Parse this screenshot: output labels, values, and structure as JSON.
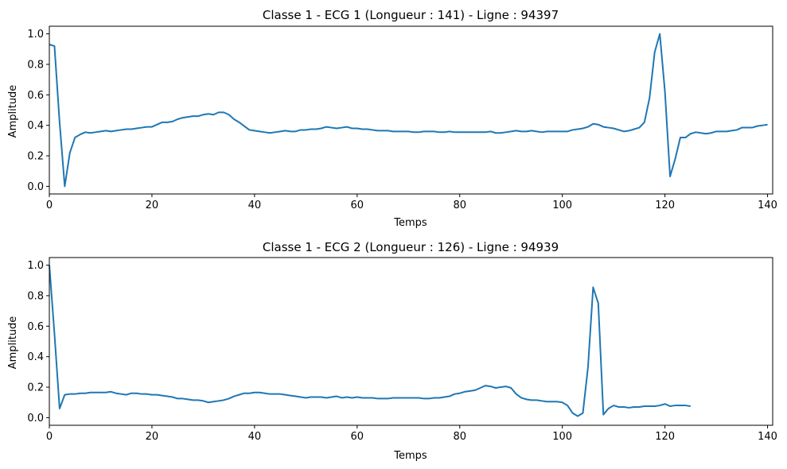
{
  "colors": {
    "line": "#1f77b4",
    "axes": "#000000",
    "background": "#ffffff"
  },
  "chart_data": [
    {
      "type": "line",
      "title": "Classe 1 - ECG 1 (Longueur : 141) - Ligne : 94397",
      "xlabel": "Temps",
      "ylabel": "Amplitude",
      "xlim": [
        0,
        141
      ],
      "ylim": [
        -0.05,
        1.05
      ],
      "xticks": [
        0,
        20,
        40,
        60,
        80,
        100,
        120,
        140
      ],
      "xtick_labels": [
        "0",
        "20",
        "40",
        "60",
        "80",
        "100",
        "120",
        "140"
      ],
      "yticks": [
        0.0,
        0.2,
        0.4,
        0.6,
        0.8,
        1.0
      ],
      "ytick_labels": [
        "0.0",
        "0.2",
        "0.4",
        "0.6",
        "0.8",
        "1.0"
      ],
      "grid": false,
      "series": [
        {
          "values": [
            0.93,
            0.92,
            0.42,
            0.0,
            0.22,
            0.32,
            0.34,
            0.355,
            0.35,
            0.355,
            0.36,
            0.365,
            0.36,
            0.365,
            0.37,
            0.375,
            0.375,
            0.38,
            0.385,
            0.39,
            0.39,
            0.405,
            0.42,
            0.42,
            0.425,
            0.44,
            0.45,
            0.455,
            0.46,
            0.46,
            0.47,
            0.475,
            0.47,
            0.485,
            0.485,
            0.47,
            0.44,
            0.42,
            0.395,
            0.37,
            0.365,
            0.36,
            0.355,
            0.35,
            0.355,
            0.36,
            0.365,
            0.36,
            0.36,
            0.37,
            0.37,
            0.375,
            0.375,
            0.38,
            0.39,
            0.385,
            0.38,
            0.385,
            0.39,
            0.38,
            0.38,
            0.375,
            0.375,
            0.37,
            0.365,
            0.365,
            0.365,
            0.36,
            0.36,
            0.36,
            0.36,
            0.355,
            0.355,
            0.36,
            0.36,
            0.36,
            0.355,
            0.355,
            0.36,
            0.355,
            0.355,
            0.355,
            0.355,
            0.355,
            0.355,
            0.355,
            0.36,
            0.35,
            0.35,
            0.355,
            0.36,
            0.365,
            0.36,
            0.36,
            0.365,
            0.36,
            0.355,
            0.36,
            0.36,
            0.36,
            0.36,
            0.36,
            0.37,
            0.375,
            0.38,
            0.39,
            0.41,
            0.405,
            0.39,
            0.385,
            0.38,
            0.37,
            0.36,
            0.365,
            0.375,
            0.385,
            0.42,
            0.58,
            0.88,
            1.0,
            0.62,
            0.065,
            0.18,
            0.32,
            0.32,
            0.345,
            0.355,
            0.35,
            0.345,
            0.35,
            0.36,
            0.36,
            0.36,
            0.365,
            0.37,
            0.385,
            0.385,
            0.385,
            0.395,
            0.4,
            0.405
          ]
        }
      ]
    },
    {
      "type": "line",
      "title": "Classe 1 - ECG 2 (Longueur : 126) - Ligne : 94939",
      "xlabel": "Temps",
      "ylabel": "Amplitude",
      "xlim": [
        0,
        141
      ],
      "ylim": [
        -0.05,
        1.05
      ],
      "xticks": [
        0,
        20,
        40,
        60,
        80,
        100,
        120,
        140
      ],
      "xtick_labels": [
        "0",
        "20",
        "40",
        "60",
        "80",
        "100",
        "120",
        "140"
      ],
      "yticks": [
        0.0,
        0.2,
        0.4,
        0.6,
        0.8,
        1.0
      ],
      "ytick_labels": [
        "0.0",
        "0.2",
        "0.4",
        "0.6",
        "0.8",
        "1.0"
      ],
      "grid": false,
      "series": [
        {
          "values": [
            1.0,
            0.55,
            0.06,
            0.15,
            0.155,
            0.155,
            0.16,
            0.16,
            0.165,
            0.165,
            0.165,
            0.165,
            0.17,
            0.16,
            0.155,
            0.15,
            0.16,
            0.16,
            0.155,
            0.155,
            0.15,
            0.15,
            0.145,
            0.14,
            0.135,
            0.125,
            0.125,
            0.12,
            0.115,
            0.115,
            0.11,
            0.1,
            0.105,
            0.11,
            0.115,
            0.125,
            0.14,
            0.15,
            0.16,
            0.16,
            0.165,
            0.165,
            0.16,
            0.155,
            0.155,
            0.155,
            0.15,
            0.145,
            0.14,
            0.135,
            0.13,
            0.135,
            0.135,
            0.135,
            0.13,
            0.135,
            0.14,
            0.13,
            0.135,
            0.13,
            0.135,
            0.13,
            0.13,
            0.13,
            0.125,
            0.125,
            0.125,
            0.13,
            0.13,
            0.13,
            0.13,
            0.13,
            0.13,
            0.125,
            0.125,
            0.13,
            0.13,
            0.135,
            0.14,
            0.155,
            0.16,
            0.17,
            0.175,
            0.18,
            0.195,
            0.21,
            0.205,
            0.195,
            0.2,
            0.205,
            0.195,
            0.155,
            0.13,
            0.12,
            0.115,
            0.115,
            0.11,
            0.105,
            0.105,
            0.105,
            0.1,
            0.08,
            0.03,
            0.01,
            0.03,
            0.33,
            0.855,
            0.75,
            0.02,
            0.06,
            0.08,
            0.07,
            0.07,
            0.065,
            0.07,
            0.07,
            0.075,
            0.075,
            0.075,
            0.08,
            0.09,
            0.075,
            0.08,
            0.08,
            0.08,
            0.075
          ]
        }
      ]
    }
  ]
}
